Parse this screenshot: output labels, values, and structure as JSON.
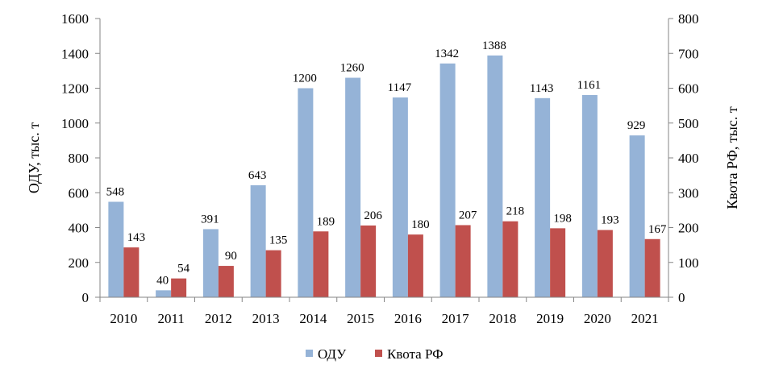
{
  "chart_data": {
    "type": "bar",
    "categories": [
      "2010",
      "2011",
      "2012",
      "2013",
      "2014",
      "2015",
      "2016",
      "2017",
      "2018",
      "2019",
      "2020",
      "2021"
    ],
    "series": [
      {
        "name": "ОДУ",
        "axis": "left",
        "color": "#95b3d7",
        "values": [
          548,
          40,
          391,
          643,
          1200,
          1260,
          1147,
          1342,
          1388,
          1143,
          1161,
          929
        ]
      },
      {
        "name": "Квота РФ",
        "axis": "right",
        "color": "#c0504d",
        "values": [
          143,
          54,
          90,
          135,
          189,
          206,
          180,
          207,
          218,
          198,
          193,
          167
        ]
      }
    ],
    "ylabel_left": "ОДУ, тыс. т",
    "ylabel_right": "Квота РФ, тыс. т",
    "ylim_left": [
      0,
      1600
    ],
    "ylim_right": [
      0,
      800
    ],
    "yticks_left": [
      "0",
      "200",
      "400",
      "600",
      "800",
      "1000",
      "1200",
      "1400",
      "1600"
    ],
    "yticks_right": [
      "0",
      "100",
      "200",
      "300",
      "400",
      "500",
      "600",
      "700",
      "800"
    ],
    "grid": false,
    "legend_position": "bottom"
  }
}
